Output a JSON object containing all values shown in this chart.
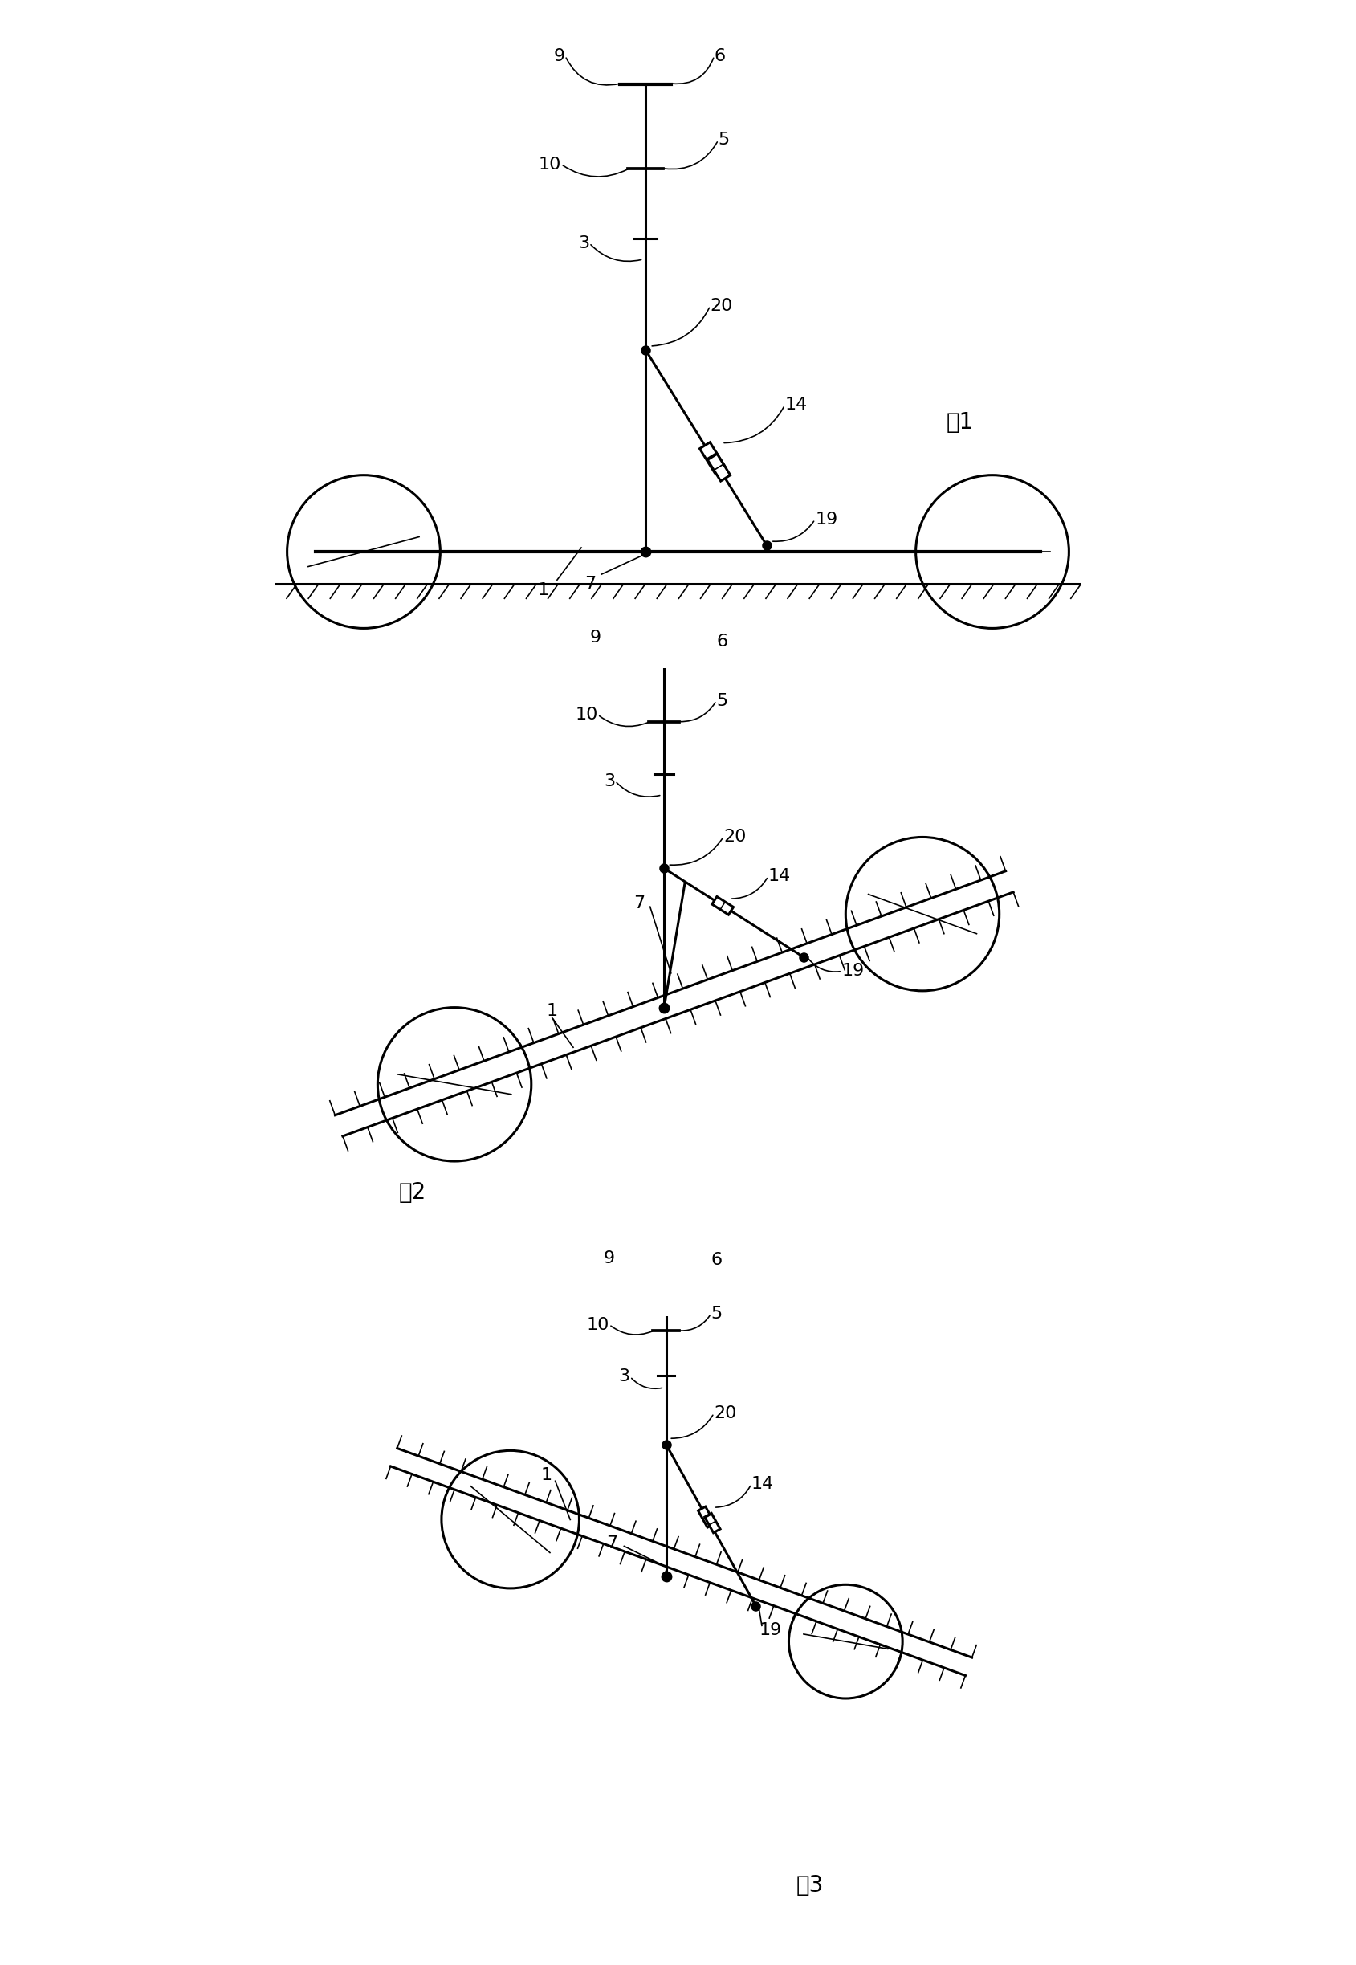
{
  "fig_width": 16.89,
  "fig_height": 24.47,
  "background_color": "#ffffff",
  "line_color": "#000000",
  "lw_main": 2.2,
  "lw_thin": 1.2,
  "lw_thick": 3.0,
  "label_fontsize": 16,
  "fig_label_fontsize": 20,
  "fig1_label": "图1",
  "fig2_label": "图2",
  "fig3_label": "图3",
  "fig1_xlim": [
    0,
    10
  ],
  "fig1_ylim": [
    -0.8,
    7.0
  ],
  "fig2_xlim": [
    0,
    10
  ],
  "fig2_ylim": [
    -1.0,
    8.5
  ],
  "fig3_xlim": [
    0,
    10
  ],
  "fig3_ylim": [
    -2.5,
    8.0
  ]
}
